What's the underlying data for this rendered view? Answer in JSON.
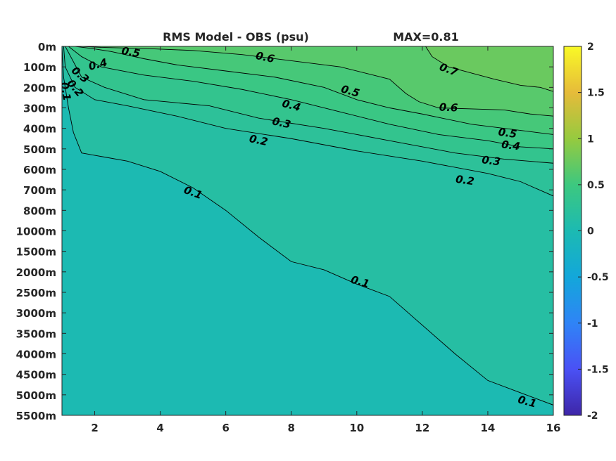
{
  "chart_data": {
    "type": "heatmap",
    "title": "RMS Model - OBS (psu)",
    "subtitle": "MAX=0.81",
    "xlabel": "",
    "ylabel": "",
    "xlim": [
      1,
      16
    ],
    "x_ticks": [
      "2",
      "4",
      "6",
      "8",
      "10",
      "12",
      "14",
      "16"
    ],
    "y_ticks": [
      "0m",
      "100m",
      "200m",
      "300m",
      "400m",
      "500m",
      "600m",
      "700m",
      "800m",
      "1000m",
      "1500m",
      "2000m",
      "2500m",
      "3000m",
      "3500m",
      "4000m",
      "4500m",
      "5000m",
      "5500m"
    ],
    "colorbar": {
      "limits": [
        -2,
        2
      ],
      "ticks": [
        "2",
        "1.5",
        "1",
        "0.5",
        "0",
        "-0.5",
        "-1",
        "-1.5",
        "-2"
      ],
      "colormap": "parula"
    },
    "contours": [
      {
        "level": "0.7",
        "points": [
          [
            12.1,
            0.0
          ],
          [
            12.3,
            0.5
          ],
          [
            12.8,
            1.0
          ],
          [
            13.5,
            1.3
          ],
          [
            14.2,
            1.6
          ],
          [
            15.0,
            1.9
          ],
          [
            15.6,
            2.0
          ],
          [
            16.0,
            2.2
          ]
        ],
        "labels": [
          {
            "text": "0.7",
            "x": 12.8,
            "y": 1.15,
            "angle": 20
          }
        ]
      },
      {
        "level": "0.6",
        "points": [
          [
            1.6,
            0.0
          ],
          [
            2.2,
            0.05
          ],
          [
            3.5,
            0.1
          ],
          [
            5.0,
            0.2
          ],
          [
            6.5,
            0.4
          ],
          [
            8.0,
            0.7
          ],
          [
            9.5,
            1.0
          ],
          [
            10.5,
            1.4
          ],
          [
            11.0,
            1.6
          ],
          [
            11.5,
            2.3
          ],
          [
            11.9,
            2.7
          ],
          [
            12.5,
            3.0
          ],
          [
            13.5,
            3.05
          ],
          [
            14.5,
            3.1
          ],
          [
            15.3,
            3.3
          ],
          [
            16.0,
            3.4
          ]
        ],
        "labels": [
          {
            "text": "0.6",
            "x": 7.2,
            "y": 0.55,
            "angle": 12
          },
          {
            "text": "0.6",
            "x": 12.8,
            "y": 3.0,
            "angle": 2
          }
        ]
      },
      {
        "level": "0.5",
        "points": [
          [
            1.4,
            0.0
          ],
          [
            1.9,
            0.1
          ],
          [
            2.5,
            0.25
          ],
          [
            3.5,
            0.6
          ],
          [
            4.5,
            0.9
          ],
          [
            6.0,
            1.2
          ],
          [
            7.5,
            1.5
          ],
          [
            9.0,
            2.0
          ],
          [
            10.0,
            2.6
          ],
          [
            11.0,
            3.0
          ],
          [
            12.0,
            3.3
          ],
          [
            13.5,
            3.8
          ],
          [
            15.0,
            4.1
          ],
          [
            16.0,
            4.3
          ]
        ],
        "labels": [
          {
            "text": "0.5",
            "x": 3.1,
            "y": 0.3,
            "angle": 10
          },
          {
            "text": "0.5",
            "x": 9.8,
            "y": 2.2,
            "angle": 16
          },
          {
            "text": "0.5",
            "x": 14.6,
            "y": 4.25,
            "angle": 8
          }
        ]
      },
      {
        "level": "0.4",
        "points": [
          [
            1.2,
            0.0
          ],
          [
            1.6,
            0.5
          ],
          [
            2.2,
            1.0
          ],
          [
            3.5,
            1.4
          ],
          [
            5.0,
            1.7
          ],
          [
            6.5,
            2.1
          ],
          [
            8.0,
            2.6
          ],
          [
            9.5,
            3.2
          ],
          [
            11.0,
            3.8
          ],
          [
            12.5,
            4.3
          ],
          [
            14.0,
            4.6
          ],
          [
            15.0,
            4.9
          ],
          [
            16.0,
            5.0
          ]
        ],
        "labels": [
          {
            "text": "0.4",
            "x": 2.1,
            "y": 0.9,
            "angle": -15
          },
          {
            "text": "0.4",
            "x": 8.0,
            "y": 2.9,
            "angle": 15
          },
          {
            "text": "0.4",
            "x": 14.7,
            "y": 4.85,
            "angle": 7
          }
        ]
      },
      {
        "level": "0.3",
        "points": [
          [
            1.1,
            0.0
          ],
          [
            1.3,
            0.6
          ],
          [
            1.6,
            1.5
          ],
          [
            2.3,
            2.0
          ],
          [
            3.5,
            2.6
          ],
          [
            5.5,
            2.9
          ],
          [
            7.0,
            3.5
          ],
          [
            9.0,
            4.0
          ],
          [
            11.0,
            4.6
          ],
          [
            13.0,
            5.2
          ],
          [
            14.5,
            5.5
          ],
          [
            16.0,
            5.7
          ]
        ],
        "labels": [
          {
            "text": "0.3",
            "x": 1.55,
            "y": 1.4,
            "angle": 40
          },
          {
            "text": "0.3",
            "x": 7.7,
            "y": 3.75,
            "angle": 12
          },
          {
            "text": "0.3",
            "x": 14.1,
            "y": 5.6,
            "angle": 7
          }
        ]
      },
      {
        "level": "0.2",
        "points": [
          [
            1.05,
            0.0
          ],
          [
            1.1,
            1.0
          ],
          [
            1.4,
            2.0
          ],
          [
            2.0,
            2.6
          ],
          [
            3.0,
            2.9
          ],
          [
            4.5,
            3.4
          ],
          [
            6.0,
            4.0
          ],
          [
            8.0,
            4.5
          ],
          [
            10.0,
            5.1
          ],
          [
            12.0,
            5.6
          ],
          [
            14.0,
            6.2
          ],
          [
            15.0,
            6.6
          ],
          [
            16.0,
            7.3
          ]
        ],
        "labels": [
          {
            "text": "0.2",
            "x": 1.4,
            "y": 2.05,
            "angle": 50
          },
          {
            "text": "0.2",
            "x": 7.0,
            "y": 4.6,
            "angle": 12
          },
          {
            "text": "0.2",
            "x": 13.3,
            "y": 6.55,
            "angle": 8
          }
        ]
      },
      {
        "level": "0.1",
        "points": [
          [
            1.0,
            0.0
          ],
          [
            1.05,
            1.5
          ],
          [
            1.2,
            3.0
          ],
          [
            1.35,
            4.2
          ],
          [
            1.6,
            5.2
          ],
          [
            2.3,
            5.4
          ],
          [
            3.0,
            5.6
          ],
          [
            4.0,
            6.1
          ],
          [
            5.0,
            6.9
          ],
          [
            6.0,
            8.0
          ],
          [
            7.0,
            9.3
          ],
          [
            8.0,
            10.5
          ],
          [
            9.0,
            10.9
          ],
          [
            10.0,
            11.6
          ],
          [
            11.0,
            12.2
          ],
          [
            12.0,
            13.6
          ],
          [
            13.0,
            15.0
          ],
          [
            14.0,
            16.3
          ],
          [
            15.0,
            16.9
          ],
          [
            16.0,
            17.5
          ]
        ],
        "labels": [
          {
            "text": "0.1",
            "x": 1.1,
            "y": 2.2,
            "angle": 80
          },
          {
            "text": "0.1",
            "x": 5.0,
            "y": 7.15,
            "angle": 20
          },
          {
            "text": "0.1",
            "x": 10.1,
            "y": 11.5,
            "angle": 16
          },
          {
            "text": "0.1",
            "x": 15.2,
            "y": 17.35,
            "angle": 15
          }
        ]
      }
    ]
  }
}
